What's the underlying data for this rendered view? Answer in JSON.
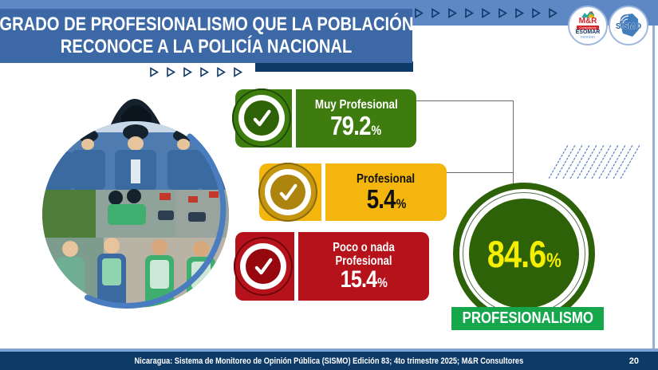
{
  "header": {
    "title_line1": "GRADO DE PROFESIONALISMO QUE LA POBLACIÓN",
    "title_line2": "RECONOCE A LA POLICÍA NACIONAL"
  },
  "logos": {
    "mr": {
      "name": "M&R",
      "band": "Consultores",
      "esomar": "ESOMAR",
      "member": "member"
    },
    "sismo": {
      "name": "SISMO"
    }
  },
  "results": {
    "muy": {
      "label": "Muy Profesional",
      "value": "79.2"
    },
    "prof": {
      "label": "Profesional",
      "value": "5.4"
    },
    "poco": {
      "label": "Poco o nada Profesional",
      "value": "15.4"
    }
  },
  "summary": {
    "value": "84.6",
    "label": "PROFESIONALISMO"
  },
  "symbols": {
    "percent": "%"
  },
  "footer": {
    "source": "Nicaragua: Sistema de Monitoreo de Opinión Pública (SISMO) Edición 83; 4to trimestre 2025; M&R Consultores",
    "page": "20"
  },
  "colors": {
    "header_blue": "#3c69a6",
    "strip_blue": "#5d88c4",
    "navy": "#0e3a68",
    "green_dark": "#3e7c10",
    "green_circle": "#2e6209",
    "green_bright": "#16a74c",
    "yellow": "#f4b50d",
    "red": "#b5121b",
    "value_yellow": "#f6ee00"
  },
  "chart_data": {
    "type": "bar",
    "title": "Grado de profesionalismo que la población reconoce a la Policía Nacional",
    "categories": [
      "Muy Profesional",
      "Profesional",
      "Poco o nada Profesional"
    ],
    "values": [
      79.2,
      5.4,
      15.4
    ],
    "unit": "%",
    "series_colors": [
      "#3e7c10",
      "#f4b50d",
      "#b5121b"
    ],
    "highlight": {
      "label": "PROFESIONALISMO",
      "value": 84.6,
      "unit": "%"
    },
    "legend_position": "none",
    "grid": false,
    "source": "Nicaragua: Sistema de Monitoreo de Opinión Pública (SISMO) Edición 83; 4to trimestre 2025; M&R Consultores",
    "page_number": 20
  }
}
